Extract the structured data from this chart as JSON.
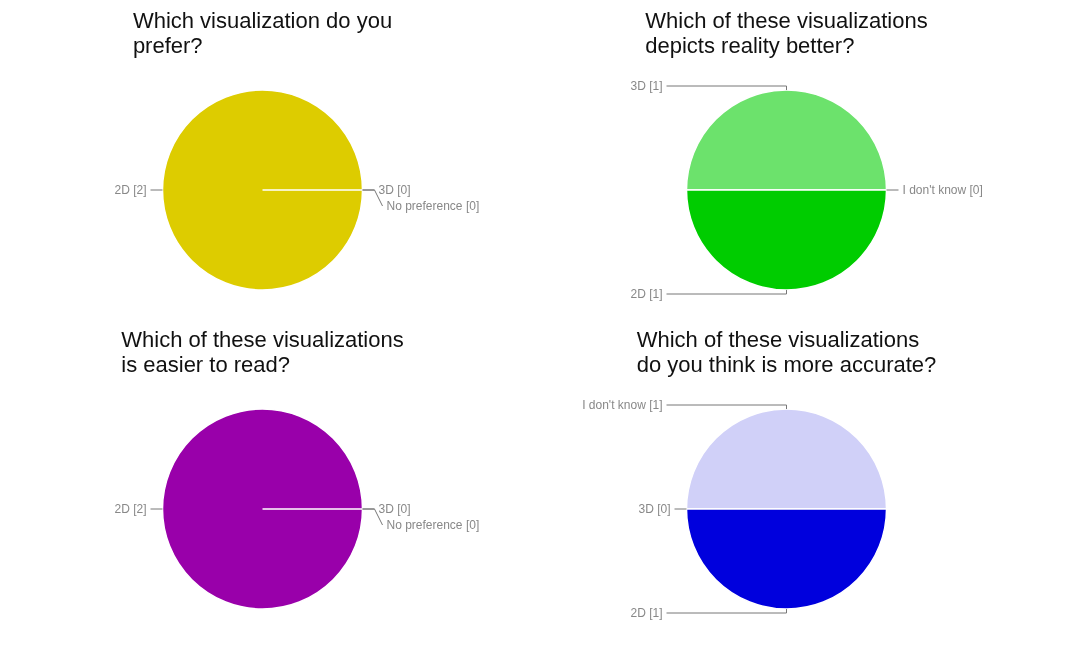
{
  "chart_data": [
    {
      "type": "pie",
      "title": "Which visualization do you prefer?",
      "categories": [
        "2D [2]",
        "3D [0]",
        "No preference [0]"
      ],
      "values": [
        100,
        0,
        0
      ],
      "colors": [
        "#ddcc00",
        "#6ce26c",
        "#9900aa"
      ]
    },
    {
      "type": "pie",
      "title": "Which of these visualizations depicts reality better?",
      "categories": [
        "3D [1]",
        "2D [1]",
        "I don't know [0]"
      ],
      "values": [
        50,
        50,
        0
      ],
      "colors": [
        "#6ce26c",
        "#00cc00",
        "#ddcc00"
      ]
    },
    {
      "type": "pie",
      "title": "Which of these visualizations is easier to read?",
      "categories": [
        "2D [2]",
        "3D [0]",
        "No preference [0]"
      ],
      "values": [
        100,
        0,
        0
      ],
      "colors": [
        "#9900aa",
        "#6ce26c",
        "#ddcc00"
      ]
    },
    {
      "type": "pie",
      "title": "Which of these visualizations do you think is more accurate?",
      "categories": [
        "I don't know [1]",
        "3D [0]",
        "2D [1]"
      ],
      "values": [
        50,
        0,
        50
      ],
      "colors": [
        "#d0d0f8",
        "#6ce26c",
        "#0000dd"
      ]
    }
  ]
}
